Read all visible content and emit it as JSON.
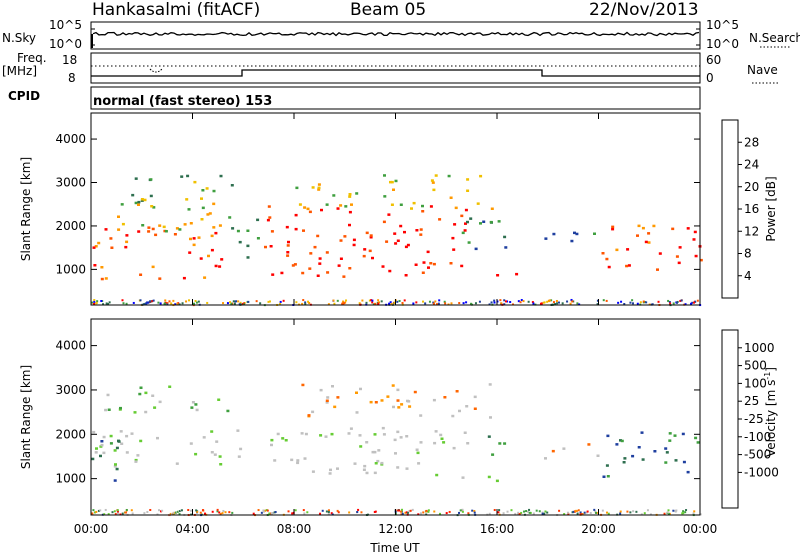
{
  "header": {
    "station": "Hankasalmi (fitACF)",
    "beam": "Beam 05",
    "date": "22/Nov/2013"
  },
  "panels": {
    "nsky_label": "N.Sky",
    "nsearch_label": "N.Search",
    "count_tick_top": "10^5",
    "count_tick_bottom": "10^0",
    "freq_label": "Freq.",
    "freq_unit": "[MHz]",
    "freq_tick_top": "18",
    "freq_tick_bottom": "8",
    "nave_label": "Nave",
    "nave_tick_top": "60",
    "nave_tick_bottom": "0",
    "cpid_label": "CPID",
    "cpid_text": "normal (fast stereo) 153"
  },
  "colors": {
    "power": [
      "#0000ff",
      "#1f3f9f",
      "#2e6f4f",
      "#3f9f3f",
      "#f0c000",
      "#ff9900",
      "#ff5500",
      "#ff0000"
    ],
    "velocity": [
      "#1f3f9f",
      "#2e6f4f",
      "#3f9f3f",
      "#66cc33",
      "#c0c0c0",
      "#c0c0c0",
      "#ff9900",
      "#ff6600",
      "#ff3300",
      "#ff0000"
    ],
    "ground_scatter": "#c0c0c0"
  },
  "chart_data": [
    {
      "type": "heatmap",
      "name": "Power",
      "ylabel": "Slant Range [km]",
      "xlabel": "",
      "x_ticks": [
        "00:00",
        "04:00",
        "08:00",
        "12:00",
        "16:00",
        "20:00",
        "00:00"
      ],
      "xlim": [
        0,
        24
      ],
      "ylim": [
        180,
        4600
      ],
      "y_ticks": [
        1000,
        2000,
        3000,
        4000
      ],
      "colorbar_label": "Power [dB]",
      "colorbar_ticks": [
        "4",
        "8",
        "12",
        "16",
        "20",
        "24",
        "28"
      ],
      "blobs": [
        {
          "t0": 0.0,
          "t1": 5.2,
          "r0": 800,
          "r1": 2050,
          "level": 6
        },
        {
          "t0": 0.5,
          "t1": 5.5,
          "r0": 1900,
          "r1": 2600,
          "level": 4
        },
        {
          "t0": 1.5,
          "t1": 5.8,
          "r0": 2500,
          "r1": 3200,
          "level": 3
        },
        {
          "t0": 5.5,
          "t1": 6.8,
          "r0": 1200,
          "r1": 2200,
          "level": 2
        },
        {
          "t0": 6.8,
          "t1": 14.8,
          "r0": 850,
          "r1": 2500,
          "level": 7
        },
        {
          "t0": 8.0,
          "t1": 15.8,
          "r0": 2400,
          "r1": 3200,
          "level": 4
        },
        {
          "t0": 14.5,
          "t1": 16.8,
          "r0": 1500,
          "r1": 2300,
          "level": 2
        },
        {
          "t0": 15.2,
          "t1": 16.8,
          "r0": 880,
          "r1": 1050,
          "level": 7
        },
        {
          "t0": 17.8,
          "t1": 20.2,
          "r0": 1600,
          "r1": 2000,
          "level": 2
        },
        {
          "t0": 20.0,
          "t1": 24.0,
          "r0": 1000,
          "r1": 2100,
          "level": 6
        }
      ]
    },
    {
      "type": "heatmap",
      "name": "Velocity",
      "ylabel": "Slant Range [km]",
      "xlabel": "Time UT",
      "x_ticks": [
        "00:00",
        "04:00",
        "08:00",
        "12:00",
        "16:00",
        "20:00",
        "00:00"
      ],
      "xlim": [
        0,
        24
      ],
      "ylim": [
        180,
        4600
      ],
      "y_ticks": [
        1000,
        2000,
        3000,
        4000
      ],
      "colorbar_label": "Velocity [m s",
      "colorbar_unit_exp": "-1",
      "colorbar_ticks": [
        "1000",
        "500",
        "100",
        "25",
        "-25",
        "-100",
        "-500",
        "-1000"
      ],
      "blobs": [
        {
          "t0": 0.0,
          "t1": 6.0,
          "r0": 1300,
          "r1": 2200,
          "level": 4
        },
        {
          "t0": 0.0,
          "t1": 1.2,
          "r0": 800,
          "r1": 2000,
          "level": 1
        },
        {
          "t0": 0.3,
          "t1": 5.5,
          "r0": 2500,
          "r1": 3100,
          "level": 3
        },
        {
          "t0": 6.8,
          "t1": 15.0,
          "r0": 1050,
          "r1": 2200,
          "level": 4
        },
        {
          "t0": 8.0,
          "t1": 15.8,
          "r0": 2400,
          "r1": 3200,
          "level": 6
        },
        {
          "t0": 14.0,
          "t1": 16.0,
          "r0": 850,
          "r1": 1100,
          "level": 4
        },
        {
          "t0": 15.5,
          "t1": 16.8,
          "r0": 1500,
          "r1": 2000,
          "level": 2
        },
        {
          "t0": 17.8,
          "t1": 20.0,
          "r0": 1400,
          "r1": 1800,
          "level": 6
        },
        {
          "t0": 20.0,
          "t1": 24.0,
          "r0": 1050,
          "r1": 2100,
          "level": 1
        }
      ]
    }
  ]
}
